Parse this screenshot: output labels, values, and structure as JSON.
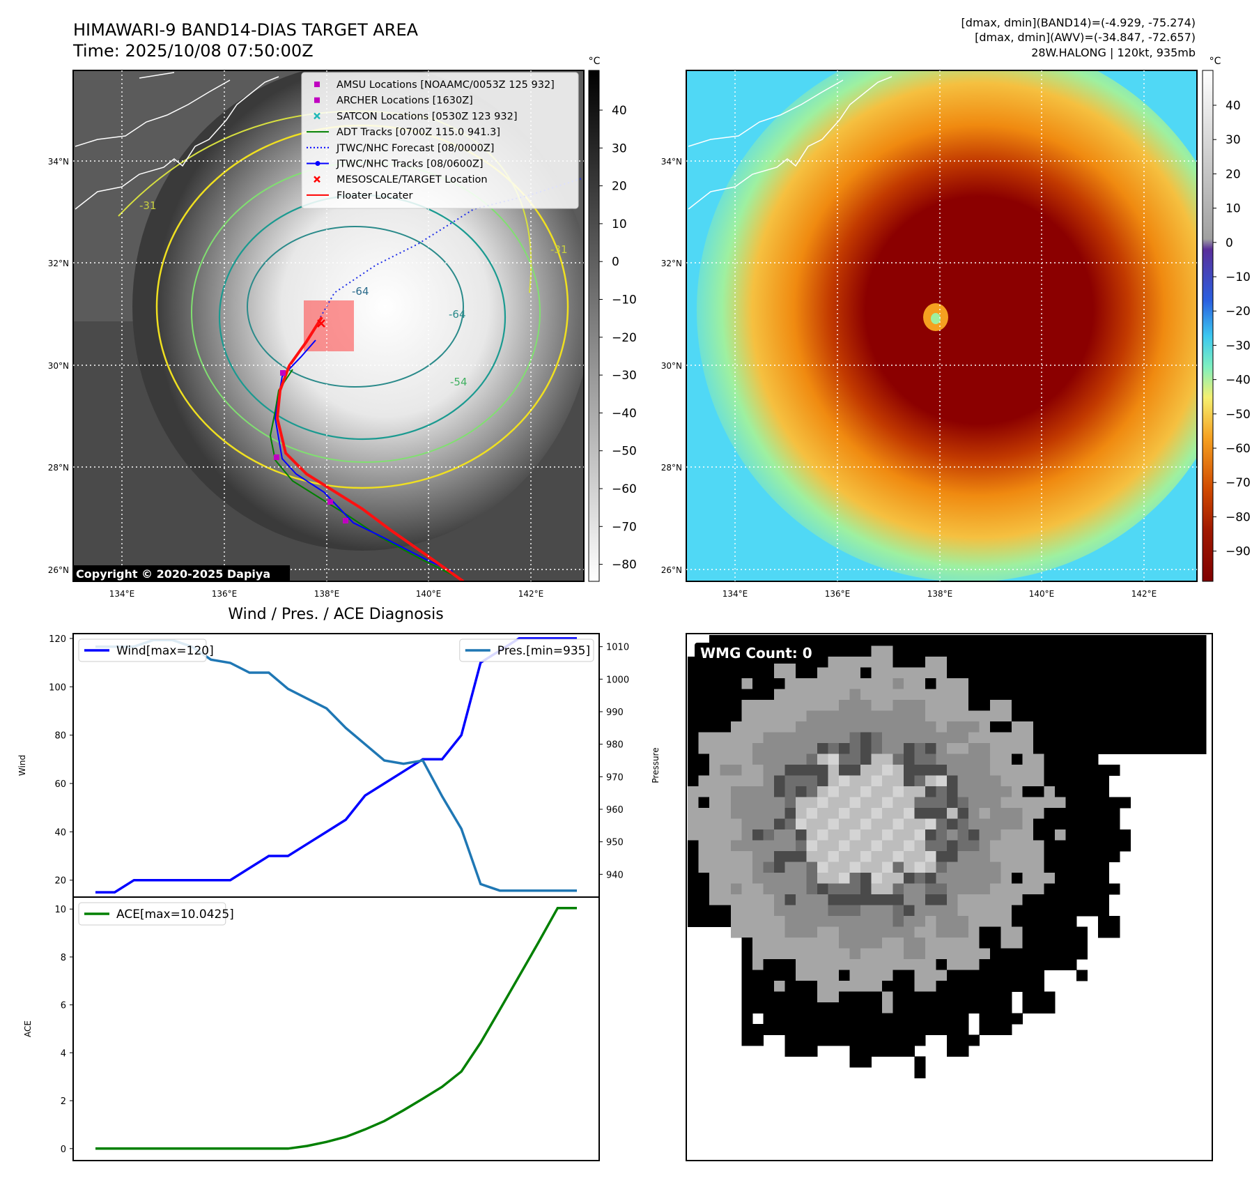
{
  "header": {
    "title_line1": "HIMAWARI-9 BAND14-DIAS TARGET AREA",
    "title_line2": "Time: 2025/10/08 07:50:00Z",
    "info_line1": "[dmax, dmin](BAND14)=(-4.929, -75.274)",
    "info_line2": "[dmax, dmin](AWV)=(-34.847, -72.657)",
    "info_line3": "28W.HALONG | 120kt, 935mb"
  },
  "maps": {
    "lat_labels": [
      "34°N",
      "32°N",
      "30°N",
      "28°N",
      "26°N"
    ],
    "lon_labels": [
      "134°E",
      "136°E",
      "138°E",
      "140°E",
      "142°E"
    ],
    "copyright": "Copyright © 2020-2025 Dapiya",
    "contour_labels": [
      "-64",
      "-64",
      "-54",
      "-31",
      "-31"
    ],
    "ir_colorbar": {
      "unit": "°C",
      "ticks": [
        "40",
        "30",
        "20",
        "10",
        "0",
        "−10",
        "−20",
        "−30",
        "−40",
        "−50",
        "−60",
        "−70",
        "−80"
      ]
    },
    "enh_colorbar": {
      "unit": "°C",
      "ticks": [
        "40",
        "30",
        "20",
        "10",
        "0",
        "−10",
        "−20",
        "−30",
        "−40",
        "−50",
        "−60",
        "−70",
        "−80",
        "−90"
      ]
    }
  },
  "legend": [
    {
      "label": "AMSU Locations [NOAAMC/0053Z 125 932]",
      "color": "#c000c0",
      "marker": "square"
    },
    {
      "label": "ARCHER Locations [1630Z]",
      "color": "#c000c0",
      "marker": "square"
    },
    {
      "label": "SATCON Locations [0530Z 123 932]",
      "color": "#20b8b8",
      "marker": "x"
    },
    {
      "label": "ADT Tracks [0700Z 115.0 941.3]",
      "color": "#008000",
      "marker": "line"
    },
    {
      "label": "JTWC/NHC Forecast [08/0000Z]",
      "color": "#0000ff",
      "marker": "dotted"
    },
    {
      "label": "JTWC/NHC Tracks [08/0600Z]",
      "color": "#0000ff",
      "marker": "line-dot"
    },
    {
      "label": "MESOSCALE/TARGET Location",
      "color": "#ff0000",
      "marker": "x"
    },
    {
      "label": "Floater Locater",
      "color": "#ff0000",
      "marker": "line"
    }
  ],
  "wmg": {
    "label": "WMG Count: 0"
  },
  "chart_data": [
    {
      "type": "line",
      "title": "Wind / Pres. / ACE Diagnosis",
      "ylabel": "Wind",
      "ylabel_right": "Pressure",
      "ylim": [
        13,
        122
      ],
      "ylim_right": [
        933,
        1014
      ],
      "yticks": [
        20,
        40,
        60,
        80,
        100,
        120
      ],
      "yticks_right": [
        940,
        950,
        960,
        970,
        980,
        990,
        1000,
        1010
      ],
      "x": [
        0,
        1,
        2,
        3,
        4,
        5,
        6,
        7,
        8,
        9,
        10,
        11,
        12,
        13,
        14,
        15,
        16,
        17,
        18,
        19,
        20,
        21,
        22,
        23,
        24,
        25
      ],
      "series": [
        {
          "name": "Wind[max=120]",
          "color": "#0000ff",
          "values": [
            15,
            15,
            20,
            20,
            20,
            20,
            20,
            20,
            25,
            30,
            30,
            35,
            40,
            45,
            55,
            60,
            65,
            70,
            70,
            80,
            110,
            115,
            120,
            120,
            120,
            120
          ]
        },
        {
          "name": "Pres.[min=935]",
          "color": "#1f77b4",
          "values": [
            1010,
            1010,
            1010,
            1012,
            1012,
            1010,
            1006,
            1005,
            1002,
            1002,
            997,
            994,
            991,
            985,
            980,
            975,
            974,
            975,
            964,
            954,
            937,
            935,
            935,
            935,
            935,
            935
          ]
        }
      ]
    },
    {
      "type": "line",
      "ylabel": "ACE",
      "ylim": [
        -0.5,
        10.5
      ],
      "yticks": [
        0,
        2,
        4,
        6,
        8,
        10
      ],
      "x": [
        0,
        1,
        2,
        3,
        4,
        5,
        6,
        7,
        8,
        9,
        10,
        11,
        12,
        13,
        14,
        15,
        16,
        17,
        18,
        19,
        20,
        21,
        22,
        23,
        24,
        25
      ],
      "series": [
        {
          "name": "ACE[max=10.0425]",
          "color": "#008000",
          "values": [
            0,
            0,
            0,
            0,
            0,
            0,
            0,
            0,
            0,
            0,
            0,
            0.11,
            0.28,
            0.49,
            0.8,
            1.15,
            1.6,
            2.08,
            2.58,
            3.22,
            4.42,
            5.8,
            7.2,
            8.6,
            10.0425,
            10.0425
          ]
        }
      ]
    }
  ]
}
